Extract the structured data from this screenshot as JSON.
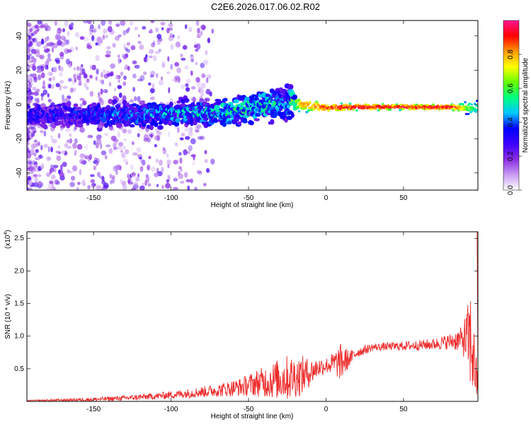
{
  "title": "C2E6.2026.017.06.02.R02",
  "chart_data": [
    {
      "type": "heatmap",
      "xlabel": "Height of straight line (km)",
      "ylabel": "Frequency (Hz)",
      "xlim": [
        -193,
        98
      ],
      "ylim": [
        -50,
        49
      ],
      "xticks": [
        -150,
        -100,
        -50,
        0,
        50
      ],
      "yticks": [
        -40,
        -20,
        0,
        20,
        40
      ],
      "colorbar": {
        "label": "Normalized spectral amplitude",
        "range": [
          0,
          1
        ],
        "ticks": [
          "0.0",
          "0.2",
          "0.4",
          "0.6",
          "0.8"
        ],
        "colors": [
          "#ffffff",
          "#c89af2",
          "#8a2be2",
          "#3b00ff",
          "#0000ff",
          "#00c8ff",
          "#00ff80",
          "#66ff00",
          "#ffff00",
          "#ff9900",
          "#ff0000",
          "#ff1493"
        ]
      },
      "band": [
        {
          "x": -180,
          "center": -6,
          "width": 10,
          "amp": 0.35
        },
        {
          "x": -150,
          "center": -6,
          "width": 11,
          "amp": 0.4
        },
        {
          "x": -120,
          "center": -6,
          "width": 12,
          "amp": 0.45
        },
        {
          "x": -90,
          "center": -5,
          "width": 12,
          "amp": 0.5
        },
        {
          "x": -60,
          "center": -4,
          "width": 12,
          "amp": 0.55
        },
        {
          "x": -40,
          "center": -1,
          "width": 14,
          "amp": 0.55
        },
        {
          "x": -25,
          "center": 2,
          "width": 16,
          "amp": 0.5
        },
        {
          "x": -15,
          "center": 0,
          "width": 6,
          "amp": 0.85
        },
        {
          "x": 0,
          "center": -2,
          "width": 4,
          "amp": 0.95
        },
        {
          "x": 20,
          "center": -1.5,
          "width": 3,
          "amp": 1.0
        },
        {
          "x": 50,
          "center": -1.5,
          "width": 2.5,
          "amp": 1.0
        },
        {
          "x": 80,
          "center": -1.5,
          "width": 2.5,
          "amp": 1.0
        },
        {
          "x": 95,
          "center": -2,
          "width": 6,
          "amp": 0.6
        }
      ]
    },
    {
      "type": "line",
      "xlabel": "Height of straight line (km)",
      "ylabel": "SNR (10 * v/v)",
      "yscale_label": "(x10",
      "yscale_exp": "4",
      "yscale_close": ")",
      "xlim": [
        -193,
        98
      ],
      "ylim": [
        0,
        2.6
      ],
      "xticks": [
        -150,
        -100,
        -50,
        0,
        50
      ],
      "yticks": [
        0.5,
        1.0,
        1.5,
        2.0,
        2.5
      ],
      "yticklabels": [
        "0.5",
        "1.0",
        "1.5",
        "2.0",
        "2.5"
      ],
      "color": "#ee2a2a",
      "envelope": {
        "x": [
          -193,
          -170,
          -150,
          -130,
          -110,
          -90,
          -70,
          -55,
          -45,
          -35,
          -25,
          -15,
          -10,
          -5,
          0,
          5,
          10,
          15,
          20,
          30,
          40,
          50,
          60,
          70,
          80,
          88,
          92,
          94,
          96,
          98
        ],
        "mean": [
          0.01,
          0.02,
          0.03,
          0.05,
          0.08,
          0.12,
          0.17,
          0.22,
          0.28,
          0.32,
          0.36,
          0.4,
          0.45,
          0.52,
          0.55,
          0.58,
          0.6,
          0.65,
          0.75,
          0.83,
          0.84,
          0.85,
          0.86,
          0.88,
          0.92,
          0.95,
          0.95,
          0.9,
          0.5,
          0.2
        ],
        "noise": [
          0.01,
          0.02,
          0.03,
          0.04,
          0.05,
          0.07,
          0.1,
          0.14,
          0.2,
          0.28,
          0.35,
          0.3,
          0.2,
          0.15,
          0.12,
          0.18,
          0.3,
          0.12,
          0.08,
          0.06,
          0.06,
          0.07,
          0.08,
          0.09,
          0.12,
          0.2,
          0.6,
          0.9,
          0.4,
          0.3
        ]
      }
    }
  ]
}
